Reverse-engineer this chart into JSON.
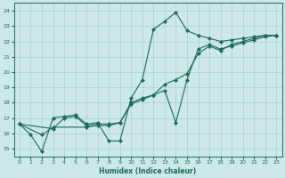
{
  "xlabel": "Humidex (Indice chaleur)",
  "bg_color": "#cde8e8",
  "grid_color": "#aacfcf",
  "line_color": "#1a6b5a",
  "xlim": [
    -0.5,
    23.5
  ],
  "ylim": [
    14.5,
    24.5
  ],
  "xticks": [
    0,
    1,
    2,
    3,
    4,
    5,
    6,
    7,
    8,
    9,
    10,
    11,
    12,
    13,
    14,
    15,
    16,
    17,
    18,
    19,
    20,
    21,
    22,
    23
  ],
  "yticks": [
    15,
    16,
    17,
    18,
    19,
    20,
    21,
    22,
    23,
    24
  ],
  "line1_x": [
    0,
    1,
    2,
    3,
    4,
    5,
    6,
    7,
    8,
    9,
    10,
    11,
    12,
    13,
    14,
    15,
    16,
    17,
    18,
    19,
    20,
    21,
    22,
    23
  ],
  "line1_y": [
    16.6,
    15.9,
    14.8,
    17.0,
    17.1,
    17.2,
    16.6,
    16.7,
    15.5,
    15.5,
    18.3,
    19.5,
    22.8,
    23.3,
    23.9,
    22.7,
    22.4,
    22.2,
    22.0,
    22.1,
    22.2,
    22.3,
    22.4,
    22.4
  ],
  "line2_x": [
    0,
    2,
    3,
    6,
    7,
    8,
    9,
    10,
    11,
    12,
    13,
    14,
    15,
    16,
    17,
    18,
    19,
    20,
    21,
    22,
    23
  ],
  "line2_y": [
    16.6,
    15.9,
    16.4,
    16.4,
    16.5,
    16.5,
    16.7,
    18.0,
    18.3,
    18.5,
    18.8,
    16.7,
    19.5,
    21.5,
    21.8,
    21.5,
    21.7,
    21.9,
    22.1,
    22.3,
    22.4
  ],
  "line3_x": [
    0,
    3,
    4,
    5,
    6,
    7,
    8,
    9,
    10,
    11,
    12,
    13,
    14,
    15,
    16,
    17,
    18,
    19,
    20,
    21,
    22,
    23
  ],
  "line3_y": [
    16.6,
    16.3,
    17.0,
    17.1,
    16.5,
    16.6,
    16.6,
    16.7,
    17.9,
    18.2,
    18.5,
    19.2,
    19.5,
    19.9,
    21.2,
    21.7,
    21.4,
    21.8,
    22.0,
    22.2,
    22.4,
    22.4
  ]
}
